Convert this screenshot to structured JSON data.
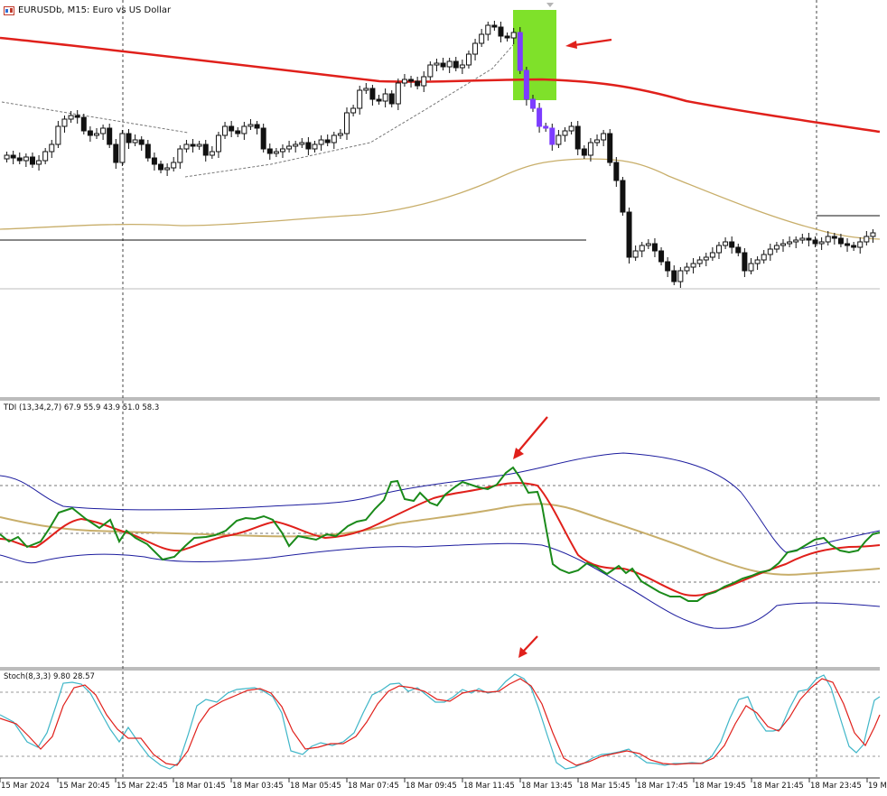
{
  "window": {
    "symbol": "EURUSDb",
    "timeframe": "M15",
    "description": "Euro vs US Dollar",
    "title_text": "EURUSDb, M15:  Euro vs US Dollar"
  },
  "indicators": {
    "tdi": {
      "label": "TDI (13,34,2,7) 67.9 55.9 43.9 51.0 58.3"
    },
    "stoch": {
      "label": "Stoch(8,3,3) 9.80 28.57"
    }
  },
  "time_axis": {
    "labels": [
      "15 Mar 2024",
      "15 Mar 20:45",
      "15 Mar 22:45",
      "18 Mar 01:45",
      "18 Mar 03:45",
      "18 Mar 05:45",
      "18 Mar 07:45",
      "18 Mar 09:45",
      "18 Mar 11:45",
      "18 Mar 13:45",
      "18 Mar 15:45",
      "18 Mar 17:45",
      "18 Mar 19:45",
      "18 Mar 21:45",
      "18 Mar 23:45",
      "19 M"
    ]
  },
  "colors": {
    "ma_red": "#e0201b",
    "ma_tan": "#c8ae6a",
    "tdi_green": "#1a8a1a",
    "tdi_blue": "#1c1c9e",
    "stoch_red": "#e0201b",
    "stoch_cyan": "#3fb6c8",
    "highlight": "#7fe12a",
    "highlight_candle": "#7c3cff",
    "annotation_arrow": "#e0201b"
  }
}
